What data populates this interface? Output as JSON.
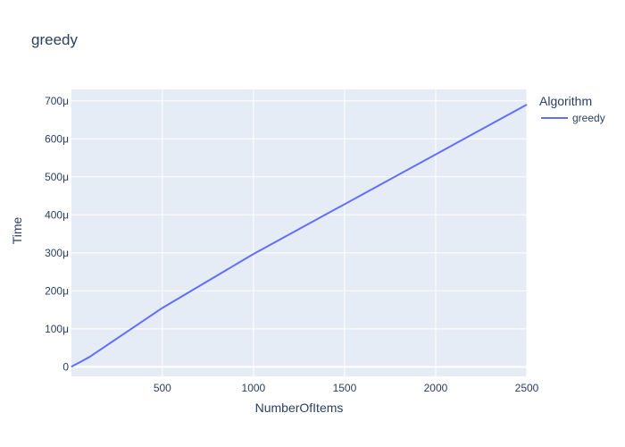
{
  "chart_data": {
    "type": "line",
    "title": "greedy",
    "xlabel": "NumberOfItems",
    "ylabel": "Time",
    "xlim": [
      1,
      2500
    ],
    "ylim": [
      -2.5e-05,
      0.00073
    ],
    "x_ticks": [
      500,
      1000,
      1500,
      2000,
      2500
    ],
    "x_tick_labels": [
      "500",
      "1000",
      "1500",
      "2000",
      "2500"
    ],
    "y_ticks": [
      0,
      0.0001,
      0.0002,
      0.0003,
      0.0004,
      0.0005,
      0.0006,
      0.0007
    ],
    "y_tick_labels": [
      "0",
      "100μ",
      "200μ",
      "300μ",
      "400μ",
      "500μ",
      "600μ",
      "700μ"
    ],
    "grid": true,
    "legend": {
      "title": "Algorithm",
      "placement": "right"
    },
    "series": [
      {
        "name": "greedy",
        "color": "#636efa",
        "x": [
          1,
          10,
          50,
          100,
          500,
          1000,
          2500
        ],
        "y": [
          3e-07,
          3e-06,
          1.3e-05,
          2.6e-05,
          0.000155,
          0.000297,
          0.00069
        ]
      }
    ]
  },
  "colors": {
    "plot_background": "#e5ecf6",
    "grid": "#ffffff",
    "text": "#2a3f5f"
  }
}
